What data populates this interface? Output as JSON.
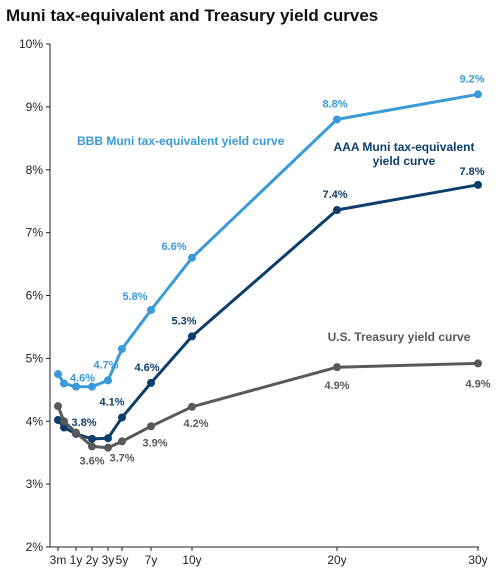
{
  "chart_data": {
    "type": "line",
    "title": "Muni tax-equivalent and Treasury yield curves",
    "xlabel": "",
    "ylabel": "",
    "x_ticks": [
      {
        "label": "3m",
        "value": 0.25
      },
      {
        "label": "1y",
        "value": 1
      },
      {
        "label": "2y",
        "value": 2
      },
      {
        "label": "3y",
        "value": 3
      },
      {
        "label": "5y",
        "value": 5
      },
      {
        "label": "7y",
        "value": 7
      },
      {
        "label": "10y",
        "value": 10
      },
      {
        "label": "20y",
        "value": 20
      },
      {
        "label": "30y",
        "value": 30
      }
    ],
    "xlim": [
      0,
      30
    ],
    "ylim": [
      2,
      10
    ],
    "y_ticks": [
      2,
      3,
      4,
      5,
      6,
      7,
      8,
      9,
      10
    ],
    "y_tick_labels": [
      "2%",
      "3%",
      "4%",
      "5%",
      "6%",
      "7%",
      "8%",
      "9%",
      "10%"
    ],
    "grid": false,
    "series": [
      {
        "name": "BBB  Muni tax-equivalent yield curve",
        "name_lines": [
          "BBB  Muni tax-equivalent yield curve"
        ],
        "color": "#3a9ad9",
        "label_placement": "upper-left",
        "points": [
          {
            "x": 0.25,
            "y": 4.75
          },
          {
            "x": 0.5,
            "y": 4.6,
            "label": "4.6%"
          },
          {
            "x": 1,
            "y": 4.55
          },
          {
            "x": 2,
            "y": 4.55
          },
          {
            "x": 3,
            "y": 4.65,
            "label": "4.7%"
          },
          {
            "x": 5,
            "y": 5.15
          },
          {
            "x": 7,
            "y": 5.77,
            "label": "5.8%"
          },
          {
            "x": 10,
            "y": 6.6,
            "label": "6.6%"
          },
          {
            "x": 20,
            "y": 8.8,
            "label": "8.8%"
          },
          {
            "x": 30,
            "y": 9.2,
            "label": "9.2%"
          }
        ]
      },
      {
        "name": "AAA  Muni tax-equivalent yield curve",
        "name_lines": [
          "AAA  Muni tax-equivalent",
          "yield curve"
        ],
        "color": "#0e3e6b",
        "label_placement": "upper-right",
        "points": [
          {
            "x": 0.25,
            "y": 4.02
          },
          {
            "x": 0.5,
            "y": 3.9
          },
          {
            "x": 1,
            "y": 3.8,
            "label": "3.8%"
          },
          {
            "x": 2,
            "y": 3.72
          },
          {
            "x": 3,
            "y": 3.73
          },
          {
            "x": 5,
            "y": 4.06,
            "label": "4.1%"
          },
          {
            "x": 7,
            "y": 4.61,
            "label": "4.6%"
          },
          {
            "x": 10,
            "y": 5.35,
            "label": "5.3%"
          },
          {
            "x": 20,
            "y": 7.36,
            "label": "7.4%"
          },
          {
            "x": 30,
            "y": 7.76,
            "label": "7.8%"
          }
        ]
      },
      {
        "name": "U.S.  Treasury yield curve",
        "name_lines": [
          "U.S.  Treasury yield curve"
        ],
        "color": "#595959",
        "label_placement": "right",
        "points": [
          {
            "x": 0.25,
            "y": 4.24
          },
          {
            "x": 0.5,
            "y": 4.0
          },
          {
            "x": 1,
            "y": 3.82
          },
          {
            "x": 2,
            "y": 3.6,
            "label": "3.6%"
          },
          {
            "x": 3,
            "y": 3.58
          },
          {
            "x": 5,
            "y": 3.68,
            "label": "3.7%"
          },
          {
            "x": 7,
            "y": 3.92,
            "label": "3.9%"
          },
          {
            "x": 10,
            "y": 4.23,
            "label": "4.2%"
          },
          {
            "x": 20,
            "y": 4.86,
            "label": "4.9%"
          },
          {
            "x": 30,
            "y": 4.92,
            "label": "4.9%"
          }
        ]
      }
    ]
  }
}
